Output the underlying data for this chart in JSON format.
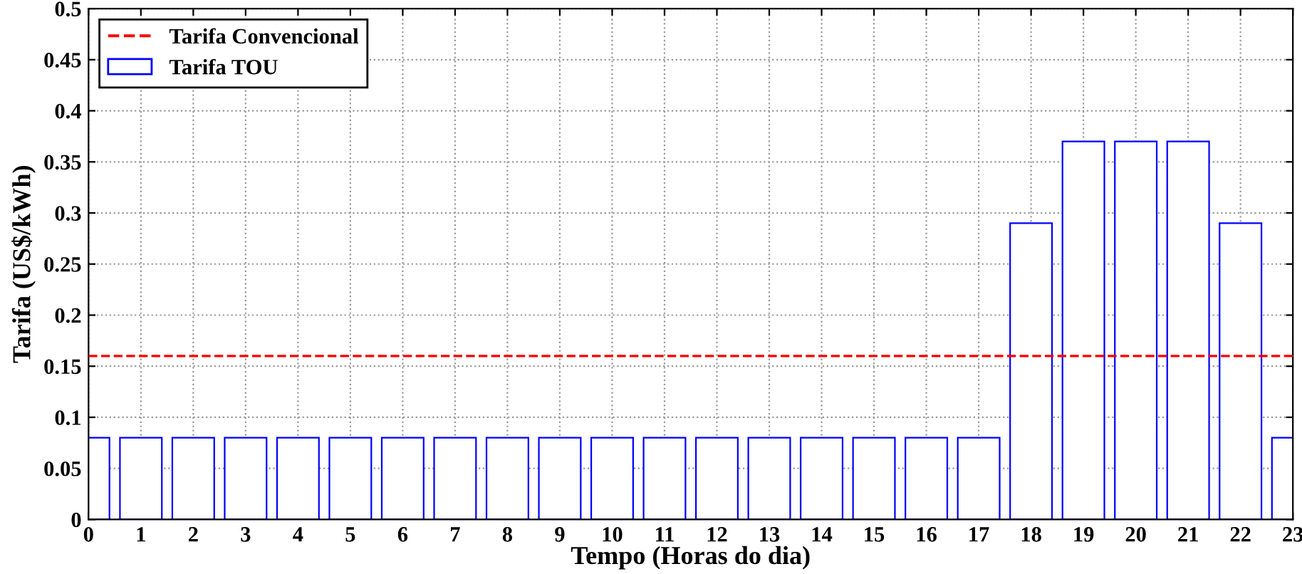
{
  "chart_data": {
    "type": "bar",
    "xlabel": "Tempo (Horas do dia)",
    "ylabel": "Tarifa (US$/kWh)",
    "x": [
      0,
      1,
      2,
      3,
      4,
      5,
      6,
      7,
      8,
      9,
      10,
      11,
      12,
      13,
      14,
      15,
      16,
      17,
      18,
      19,
      20,
      21,
      22,
      23
    ],
    "series": [
      {
        "name": "Tarifa TOU",
        "color": "#0000ff",
        "values": [
          0.08,
          0.08,
          0.08,
          0.08,
          0.08,
          0.08,
          0.08,
          0.08,
          0.08,
          0.08,
          0.08,
          0.08,
          0.08,
          0.08,
          0.08,
          0.08,
          0.08,
          0.08,
          0.29,
          0.37,
          0.37,
          0.37,
          0.29,
          0.08
        ]
      }
    ],
    "ref_lines": [
      {
        "axis": "y",
        "value": 0.16,
        "label": "Tarifa Convencional",
        "color": "#ff0000",
        "line_style": "dashed"
      }
    ],
    "xlim": [
      0,
      23
    ],
    "xticks": [
      0,
      1,
      2,
      3,
      4,
      5,
      6,
      7,
      8,
      9,
      10,
      11,
      12,
      13,
      14,
      15,
      16,
      17,
      18,
      19,
      20,
      21,
      22,
      23
    ],
    "ylim": [
      0,
      0.5
    ],
    "yticks": [
      0,
      0.05,
      0.1,
      0.15,
      0.2,
      0.25,
      0.3,
      0.35,
      0.4,
      0.45,
      0.5
    ],
    "grid": true,
    "legend": "top left"
  }
}
